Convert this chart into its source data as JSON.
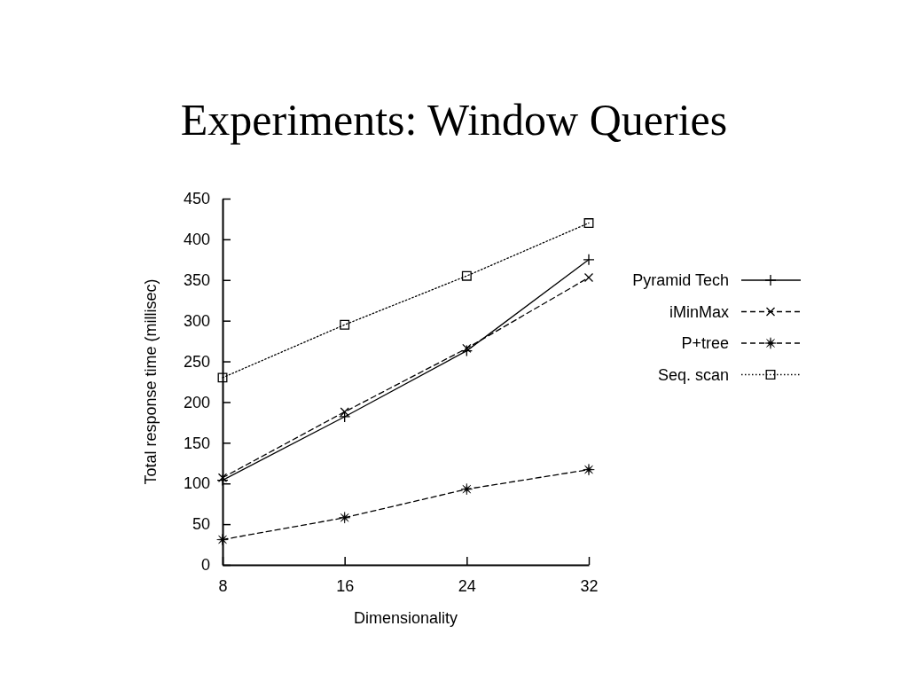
{
  "chart_data": {
    "type": "line",
    "title": "Experiments: Window Queries",
    "xlabel": "Dimensionality",
    "ylabel": "Total response time (millisec)",
    "x": [
      8,
      16,
      24,
      32
    ],
    "xlim": [
      8,
      32
    ],
    "xticks": [
      8,
      16,
      24,
      32
    ],
    "ylim": [
      0,
      450
    ],
    "yticks": [
      0,
      50,
      100,
      150,
      200,
      250,
      300,
      350,
      400,
      450
    ],
    "legend": "right",
    "series": [
      {
        "name": "Pyramid Tech",
        "color": "#000000",
        "values": [
          104,
          182,
          263,
          375
        ],
        "marker": "cross",
        "line_style": "solid"
      },
      {
        "name": "iMinMax",
        "color": "#000000",
        "values": [
          107,
          188,
          266,
          353
        ],
        "marker": "x",
        "line_style": "dashed"
      },
      {
        "name": "P+tree",
        "color": "#000000",
        "values": [
          31,
          58,
          93,
          117
        ],
        "marker": "star",
        "line_style": "dashed"
      },
      {
        "name": "Seq. scan",
        "color": "#000000",
        "values": [
          230,
          295,
          355,
          420
        ],
        "marker": "square",
        "line_style": "dotted"
      }
    ]
  }
}
